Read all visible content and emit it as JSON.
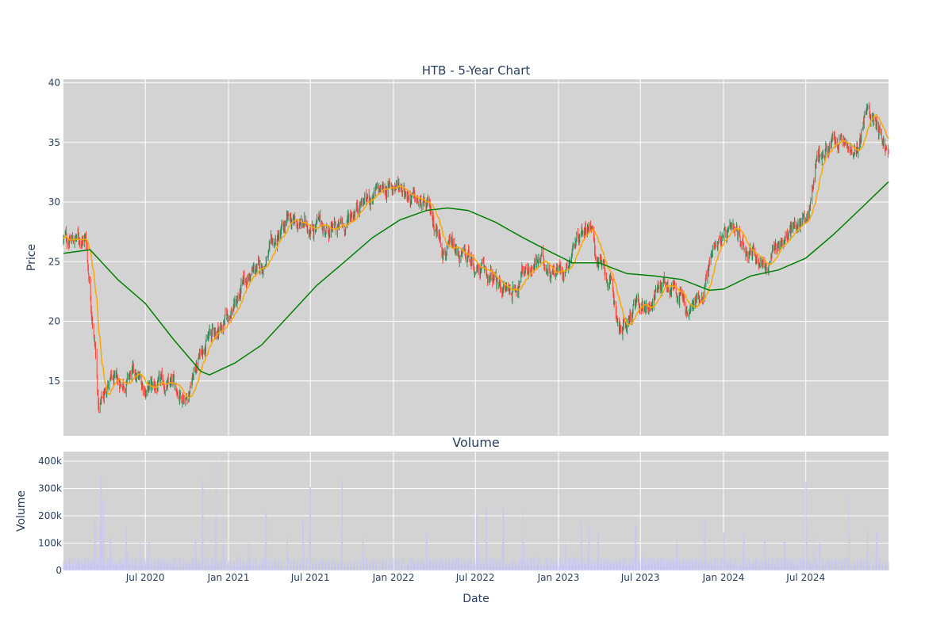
{
  "chart_data": [
    {
      "type": "candlestick",
      "title": "HTB - 5-Year Chart",
      "ylabel": "Price",
      "ylim": [
        10.4,
        40.3
      ],
      "yticks": [
        15,
        20,
        25,
        30,
        35,
        40
      ],
      "grid": true,
      "background": "#d3d3d3",
      "colors": {
        "up": "#2e8b57",
        "down": "#ff4136",
        "ma_short": "#ffa500",
        "ma_long": "#008000"
      },
      "x_range": [
        "2020-01-02",
        "2024-12-31"
      ],
      "anchors": [
        [
          "2020-01-02",
          26.8
        ],
        [
          "2020-02-20",
          27.0
        ],
        [
          "2020-03-12",
          18.0
        ],
        [
          "2020-03-20",
          12.5
        ],
        [
          "2020-04-10",
          15.0
        ],
        [
          "2020-05-01",
          14.5
        ],
        [
          "2020-06-01",
          15.5
        ],
        [
          "2020-07-01",
          14.4
        ],
        [
          "2020-09-01",
          14.5
        ],
        [
          "2020-10-01",
          13.8
        ],
        [
          "2020-11-10",
          18.5
        ],
        [
          "2020-12-15",
          19.5
        ],
        [
          "2021-01-15",
          21.5
        ],
        [
          "2021-02-15",
          23.8
        ],
        [
          "2021-03-15",
          24.5
        ],
        [
          "2021-04-15",
          26.5
        ],
        [
          "2021-05-15",
          28.3
        ],
        [
          "2021-06-15",
          28.0
        ],
        [
          "2021-07-15",
          28.2
        ],
        [
          "2021-08-15",
          27.5
        ],
        [
          "2021-09-15",
          28.0
        ],
        [
          "2021-10-15",
          30.0
        ],
        [
          "2021-11-15",
          30.5
        ],
        [
          "2021-12-20",
          31.2
        ],
        [
          "2022-01-20",
          31.5
        ],
        [
          "2022-02-20",
          30.0
        ],
        [
          "2022-03-25",
          29.0
        ],
        [
          "2022-04-20",
          26.5
        ],
        [
          "2022-05-20",
          25.5
        ],
        [
          "2022-06-20",
          25.0
        ],
        [
          "2022-07-20",
          24.0
        ],
        [
          "2022-08-20",
          23.0
        ],
        [
          "2022-09-20",
          22.5
        ],
        [
          "2022-10-20",
          24.5
        ],
        [
          "2022-11-20",
          25.0
        ],
        [
          "2022-12-20",
          24.5
        ],
        [
          "2023-01-15",
          24.5
        ],
        [
          "2023-02-15",
          27.5
        ],
        [
          "2023-03-10",
          28.5
        ],
        [
          "2023-03-25",
          25.5
        ],
        [
          "2023-04-25",
          23.0
        ],
        [
          "2023-05-20",
          19.0
        ],
        [
          "2023-06-20",
          21.0
        ],
        [
          "2023-07-20",
          21.5
        ],
        [
          "2023-08-20",
          23.5
        ],
        [
          "2023-09-20",
          23.0
        ],
        [
          "2023-10-15",
          20.5
        ],
        [
          "2023-11-15",
          22.5
        ],
        [
          "2023-12-15",
          27.0
        ],
        [
          "2024-01-15",
          27.0
        ],
        [
          "2024-02-15",
          26.5
        ],
        [
          "2024-03-15",
          25.5
        ],
        [
          "2024-04-10",
          24.5
        ],
        [
          "2024-05-01",
          26.5
        ],
        [
          "2024-06-10",
          28.0
        ],
        [
          "2024-07-10",
          29.5
        ],
        [
          "2024-07-25",
          34.0
        ],
        [
          "2024-08-20",
          34.5
        ],
        [
          "2024-09-20",
          35.0
        ],
        [
          "2024-10-20",
          33.5
        ],
        [
          "2024-11-10",
          37.5
        ],
        [
          "2024-12-05",
          37.0
        ],
        [
          "2024-12-31",
          33.8
        ]
      ],
      "long_ma": [
        [
          "2020-01-02",
          25.7
        ],
        [
          "2020-03-01",
          26.0
        ],
        [
          "2020-05-01",
          23.5
        ],
        [
          "2020-07-01",
          21.5
        ],
        [
          "2020-09-01",
          18.5
        ],
        [
          "2020-11-01",
          15.8
        ],
        [
          "2020-11-20",
          15.5
        ],
        [
          "2021-01-15",
          16.5
        ],
        [
          "2021-03-15",
          18.0
        ],
        [
          "2021-05-15",
          20.5
        ],
        [
          "2021-07-15",
          23.0
        ],
        [
          "2021-09-15",
          25.0
        ],
        [
          "2021-11-15",
          27.0
        ],
        [
          "2022-01-15",
          28.5
        ],
        [
          "2022-03-15",
          29.3
        ],
        [
          "2022-05-01",
          29.5
        ],
        [
          "2022-06-15",
          29.3
        ],
        [
          "2022-08-15",
          28.3
        ],
        [
          "2022-10-15",
          27.0
        ],
        [
          "2022-12-15",
          25.8
        ],
        [
          "2023-02-01",
          24.9
        ],
        [
          "2023-04-01",
          24.9
        ],
        [
          "2023-06-01",
          24.0
        ],
        [
          "2023-08-01",
          23.8
        ],
        [
          "2023-10-01",
          23.5
        ],
        [
          "2023-12-01",
          22.6
        ],
        [
          "2024-01-01",
          22.7
        ],
        [
          "2024-03-01",
          23.8
        ],
        [
          "2024-05-01",
          24.3
        ],
        [
          "2024-07-01",
          25.3
        ],
        [
          "2024-09-01",
          27.3
        ],
        [
          "2024-11-01",
          29.5
        ],
        [
          "2024-12-31",
          31.7
        ]
      ]
    },
    {
      "type": "bar",
      "title": "Volume",
      "xlabel": "Date",
      "ylabel": "Volume",
      "ylim": [
        0,
        435000
      ],
      "yticks": [
        0,
        100000,
        200000,
        300000,
        400000
      ],
      "ytick_labels": [
        "0",
        "100k",
        "200k",
        "300k",
        "400k"
      ],
      "xticks": [
        "2020-07-01",
        "2021-01-01",
        "2021-07-01",
        "2022-01-01",
        "2022-07-01",
        "2023-01-01",
        "2023-07-01",
        "2024-01-01",
        "2024-07-01"
      ],
      "xtick_labels": [
        "Jul 2020",
        "Jan 2021",
        "Jul 2021",
        "Jan 2022",
        "Jul 2022",
        "Jan 2023",
        "Jul 2023",
        "Jan 2024",
        "Jul 2024"
      ],
      "grid": true,
      "background": "#d3d3d3",
      "bar_color": "#c8c8f0",
      "typical_volume": 40000,
      "spikes": [
        [
          "2020-03-12",
          180000
        ],
        [
          "2020-03-25",
          350000
        ],
        [
          "2020-03-30",
          260000
        ],
        [
          "2020-04-15",
          120000
        ],
        [
          "2020-05-20",
          155000
        ],
        [
          "2020-06-20",
          110000
        ],
        [
          "2020-07-10",
          105000
        ],
        [
          "2020-10-20",
          110000
        ],
        [
          "2020-11-05",
          335000
        ],
        [
          "2020-12-05",
          405000
        ],
        [
          "2020-12-20",
          210000
        ],
        [
          "2021-02-15",
          100000
        ],
        [
          "2021-03-25",
          215000
        ],
        [
          "2021-05-10",
          130000
        ],
        [
          "2021-06-15",
          185000
        ],
        [
          "2021-07-01",
          305000
        ],
        [
          "2021-09-10",
          330000
        ],
        [
          "2021-10-25",
          125000
        ],
        [
          "2022-03-15",
          135000
        ],
        [
          "2022-07-05",
          205000
        ],
        [
          "2022-07-25",
          230000
        ],
        [
          "2022-09-01",
          225000
        ],
        [
          "2022-10-15",
          230000
        ],
        [
          "2023-01-15",
          100000
        ],
        [
          "2023-02-20",
          175000
        ],
        [
          "2023-03-10",
          175000
        ],
        [
          "2023-03-30",
          140000
        ],
        [
          "2023-06-20",
          165000
        ],
        [
          "2023-09-20",
          100000
        ],
        [
          "2023-11-20",
          185000
        ],
        [
          "2024-01-01",
          140000
        ],
        [
          "2024-02-15",
          135000
        ],
        [
          "2024-04-01",
          110000
        ],
        [
          "2024-05-15",
          105000
        ],
        [
          "2024-07-01",
          325000
        ],
        [
          "2024-07-20",
          135000
        ],
        [
          "2024-08-01",
          100000
        ],
        [
          "2024-10-05",
          275000
        ],
        [
          "2024-11-15",
          145000
        ],
        [
          "2024-12-05",
          140000
        ]
      ]
    }
  ]
}
